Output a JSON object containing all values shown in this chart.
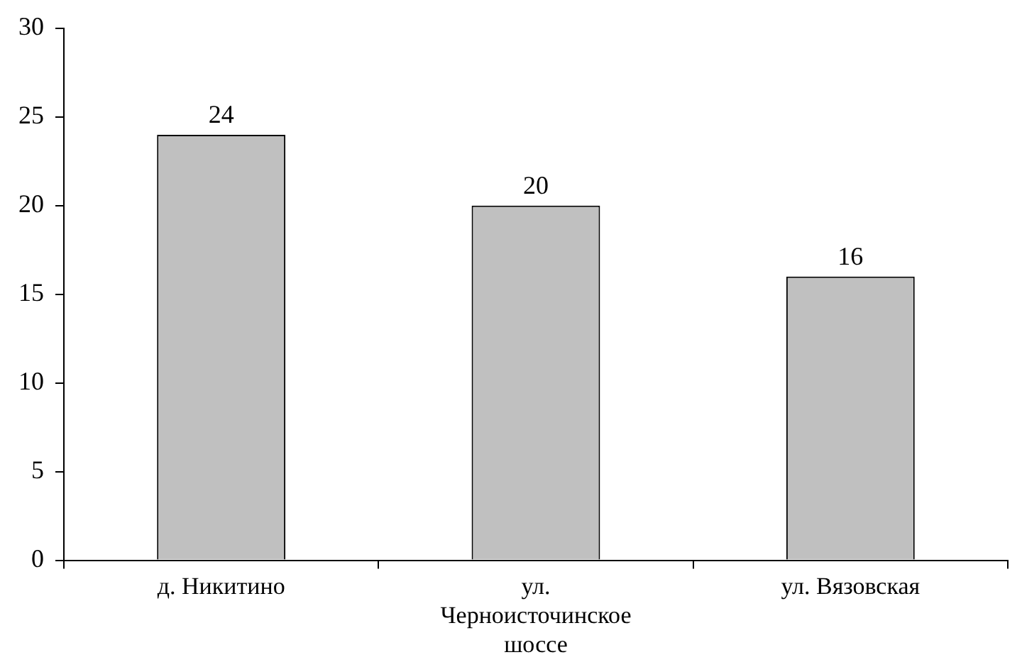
{
  "chart_data": {
    "type": "bar",
    "categories": [
      "д. Никитино",
      "ул. Черноисточинское шоссе",
      "ул. Вязовская"
    ],
    "values": [
      24,
      20,
      16
    ],
    "color": "#c0c0c0",
    "ylim": [
      0,
      30
    ],
    "yticks": [
      0,
      5,
      10,
      15,
      20,
      25,
      30
    ],
    "grid": false,
    "legend": false,
    "data_labels": true
  }
}
